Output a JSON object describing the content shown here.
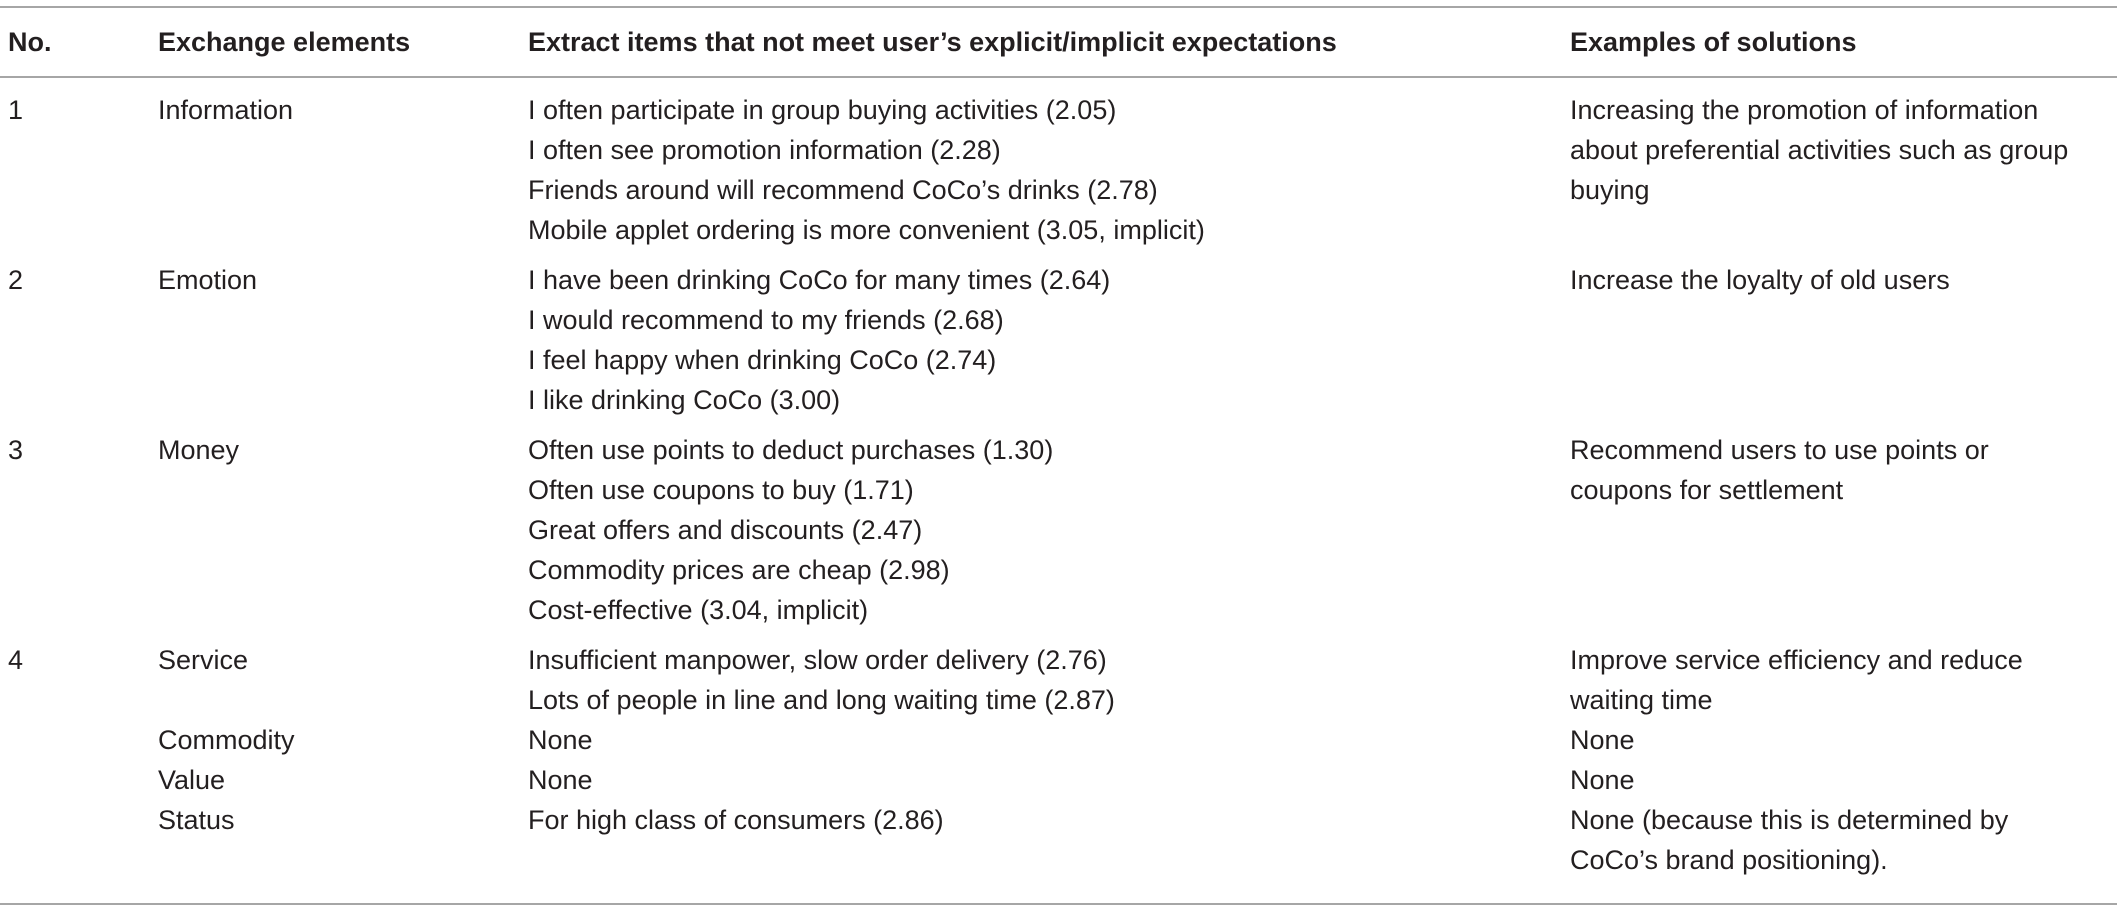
{
  "table": {
    "headers": {
      "no": "No.",
      "elements": "Exchange elements",
      "items": "Extract items that not meet user’s explicit/implicit expectations",
      "solutions": "Examples of solutions"
    },
    "rows": [
      {
        "no": "1",
        "element": "Information",
        "items": [
          "I often participate in group buying activities (2.05)",
          "I often see promotion information (2.28)",
          "Friends around will recommend CoCo’s drinks (2.78)",
          "Mobile applet ordering is more convenient (3.05, implicit)"
        ],
        "solution_lines": [
          "Increasing the promotion of information",
          "about preferential activities such as group",
          "buying"
        ]
      },
      {
        "no": "2",
        "element": "Emotion",
        "items": [
          "I have been drinking CoCo for many times (2.64)",
          "I would recommend to my friends (2.68)",
          "I feel happy when drinking CoCo (2.74)",
          "I like drinking CoCo (3.00)"
        ],
        "solution_lines": [
          "Increase the loyalty of old users"
        ]
      },
      {
        "no": "3",
        "element": "Money",
        "items": [
          "Often use points to deduct purchases (1.30)",
          "Often use coupons to buy (1.71)",
          "Great offers and discounts (2.47)",
          "Commodity prices are cheap (2.98)",
          "Cost-effective (3.04, implicit)"
        ],
        "solution_lines": [
          "Recommend users to use points or",
          "coupons for settlement"
        ]
      },
      {
        "no": "4",
        "element": "Service",
        "items": [
          "Insufficient manpower, slow order delivery (2.76)",
          "Lots of people in line and long waiting time (2.87)"
        ],
        "solution_lines": [
          "Improve service efficiency and reduce",
          "waiting time"
        ]
      },
      {
        "no": "",
        "element": "Commodity",
        "items": [
          "None"
        ],
        "solution_lines": [
          "None"
        ]
      },
      {
        "no": "",
        "element": "Value",
        "items": [
          "None"
        ],
        "solution_lines": [
          "None"
        ]
      },
      {
        "no": "",
        "element": "Status",
        "items": [
          "For high class of consumers (2.86)"
        ],
        "solution_lines": [
          "None (because this is determined by",
          "CoCo’s brand positioning)."
        ]
      }
    ]
  }
}
